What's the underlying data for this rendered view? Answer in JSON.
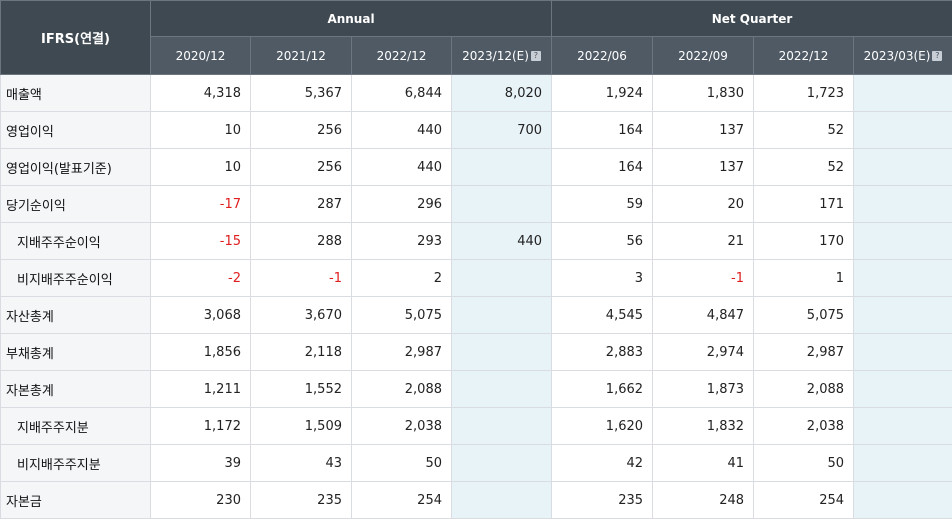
{
  "header": {
    "corner_label": "IFRS(연결)",
    "annual_label": "Annual",
    "quarter_label": "Net Quarter",
    "periods": [
      "2020/12",
      "2021/12",
      "2022/12",
      "2023/12(E)",
      "2022/06",
      "2022/09",
      "2022/12",
      "2023/03(E)"
    ]
  },
  "rows": [
    {
      "label": "매출액",
      "values": [
        "4,318",
        "5,367",
        "6,844",
        "8,020",
        "1,924",
        "1,830",
        "1,723",
        ""
      ]
    },
    {
      "label": "영업이익",
      "values": [
        "10",
        "256",
        "440",
        "700",
        "164",
        "137",
        "52",
        ""
      ]
    },
    {
      "label": "영업이익(발표기준)",
      "values": [
        "10",
        "256",
        "440",
        "",
        "164",
        "137",
        "52",
        ""
      ]
    },
    {
      "label": "당기순이익",
      "values": [
        "-17",
        "287",
        "296",
        "",
        "59",
        "20",
        "171",
        ""
      ]
    },
    {
      "label": "지배주주순이익",
      "values": [
        "-15",
        "288",
        "293",
        "440",
        "56",
        "21",
        "170",
        ""
      ]
    },
    {
      "label": "비지배주주순이익",
      "values": [
        "-2",
        "-1",
        "2",
        "",
        "3",
        "-1",
        "1",
        ""
      ]
    },
    {
      "label": "자산총계",
      "values": [
        "3,068",
        "3,670",
        "5,075",
        "",
        "4,545",
        "4,847",
        "5,075",
        ""
      ]
    },
    {
      "label": "부채총계",
      "values": [
        "1,856",
        "2,118",
        "2,987",
        "",
        "2,883",
        "2,974",
        "2,987",
        ""
      ]
    },
    {
      "label": "자본총계",
      "values": [
        "1,211",
        "1,552",
        "2,088",
        "",
        "1,662",
        "1,873",
        "2,088",
        ""
      ]
    },
    {
      "label": "지배주주지분",
      "values": [
        "1,172",
        "1,509",
        "2,038",
        "",
        "1,620",
        "1,832",
        "2,038",
        ""
      ]
    },
    {
      "label": "비지배주주지분",
      "values": [
        "39",
        "43",
        "50",
        "",
        "42",
        "41",
        "50",
        ""
      ]
    },
    {
      "label": "자본금",
      "values": [
        "230",
        "235",
        "254",
        "",
        "235",
        "248",
        "254",
        ""
      ]
    }
  ]
}
